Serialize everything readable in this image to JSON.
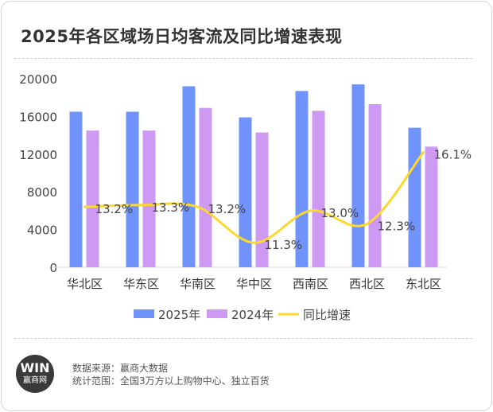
{
  "title": "2025年各区域场日均客流及同比增速表现",
  "chart_data": {
    "type": "bar",
    "title": "2025年各区域场日均客流及同比增速表现",
    "categories": [
      "华北区",
      "华东区",
      "华南区",
      "华中区",
      "西南区",
      "西北区",
      "东北区"
    ],
    "series": [
      {
        "name": "2025年",
        "type": "bar",
        "color": "#6f93fb",
        "values": [
          16500,
          16500,
          19200,
          15900,
          18700,
          19400,
          14800
        ]
      },
      {
        "name": "2024年",
        "type": "bar",
        "color": "#cd99f3",
        "values": [
          14500,
          14500,
          16900,
          14300,
          16600,
          17300,
          12800
        ]
      },
      {
        "name": "同比增速",
        "type": "line",
        "axis": "secondary",
        "color": "#fcd82e",
        "values": [
          13.2,
          13.3,
          13.2,
          11.3,
          13.0,
          12.3,
          16.1
        ],
        "labels": [
          "13.2%",
          "13.3%",
          "13.2%",
          "11.3%",
          "13.0%",
          "12.3%",
          "16.1%"
        ]
      }
    ],
    "ylim": [
      0,
      20000
    ],
    "yticks": [
      "0",
      "4000",
      "8000",
      "12000",
      "16000",
      "20000"
    ],
    "y2lim": [
      10,
      20
    ],
    "legend": "bottom",
    "grid": false
  },
  "footer": {
    "logo_top": "WIN",
    "logo_bottom": "赢商网",
    "source": "数据来源：赢商大数据",
    "scope": "统计范围：全国3万方以上购物中心、独立百货"
  }
}
